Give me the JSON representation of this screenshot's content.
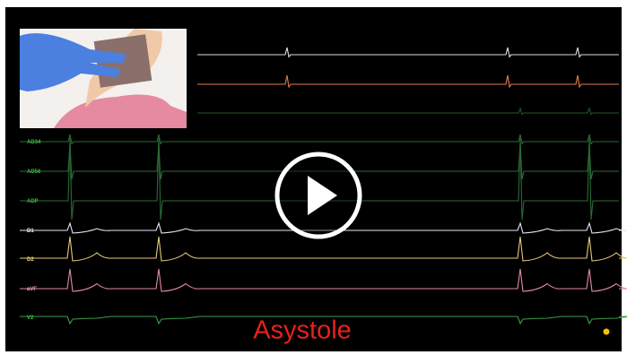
{
  "video": {
    "leads": [
      "AD34",
      "AD56",
      "ADP",
      "D1",
      "D2",
      "aVF",
      "V2"
    ],
    "caption": "Asystole"
  }
}
